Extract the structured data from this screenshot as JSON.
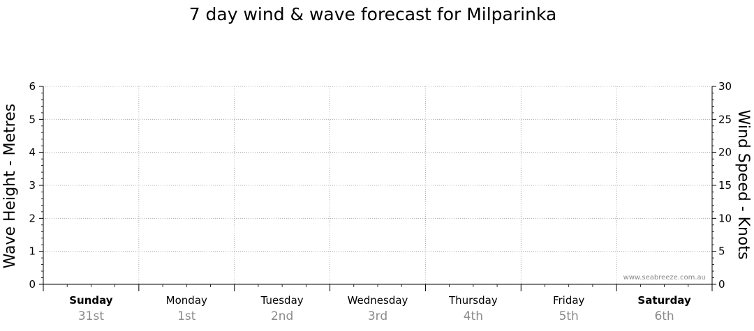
{
  "chart_data": {
    "type": "line",
    "title": "7 day wind & wave forecast for Milparinka",
    "ylabel_left": "Wave Height - Metres",
    "ylabel_right": "Wind Speed - Knots",
    "ylim_left": [
      0,
      6
    ],
    "ylim_right": [
      0,
      30
    ],
    "yticks_left": [
      "0",
      "1",
      "2",
      "3",
      "4",
      "5",
      "6"
    ],
    "yticks_right": [
      "0",
      "5",
      "10",
      "15",
      "20",
      "25",
      "30"
    ],
    "days": [
      {
        "day": "Sunday",
        "date": "31st",
        "bold": true
      },
      {
        "day": "Monday",
        "date": "1st",
        "bold": false
      },
      {
        "day": "Tuesday",
        "date": "2nd",
        "bold": false
      },
      {
        "day": "Wednesday",
        "date": "3rd",
        "bold": false
      },
      {
        "day": "Thursday",
        "date": "4th",
        "bold": false
      },
      {
        "day": "Friday",
        "date": "5th",
        "bold": false
      },
      {
        "day": "Saturday",
        "date": "6th",
        "bold": true
      }
    ],
    "series": [],
    "grid": true,
    "watermark": "www.seabreeze.com.au"
  }
}
